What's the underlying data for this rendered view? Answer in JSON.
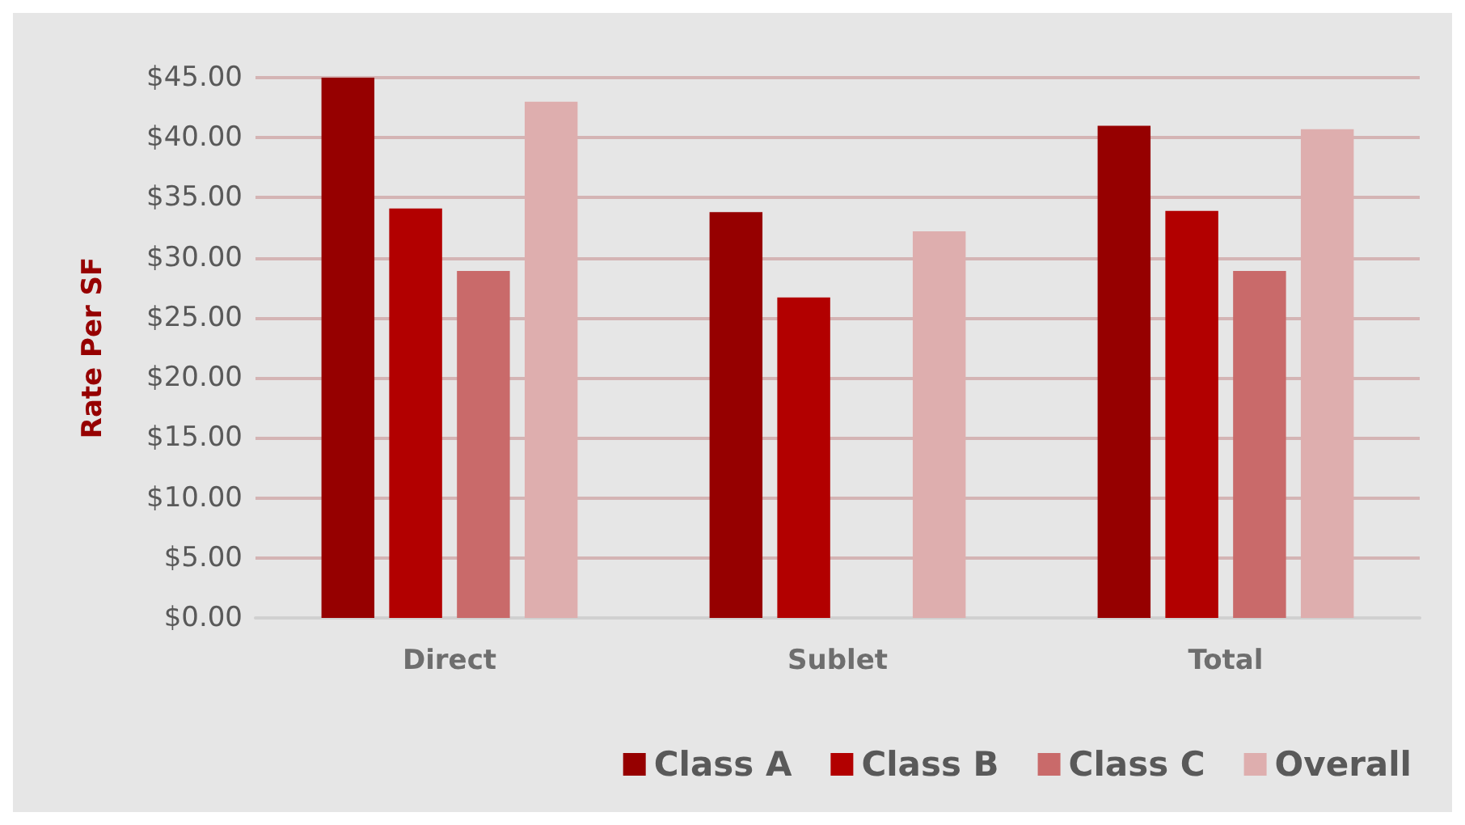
{
  "chart_data": {
    "type": "bar",
    "ylabel": "Rate Per SF",
    "categories": [
      "Direct",
      "Sublet",
      "Total"
    ],
    "series": [
      {
        "name": "Class A",
        "color": "#960000",
        "values": [
          45.0,
          33.8,
          41.0
        ]
      },
      {
        "name": "Class B",
        "color": "#b20000",
        "values": [
          34.1,
          26.7,
          33.9
        ]
      },
      {
        "name": "Class C",
        "color": "#c96a6a",
        "values": [
          28.9,
          null,
          28.9
        ]
      },
      {
        "name": "Overall",
        "color": "#deaeae",
        "values": [
          43.0,
          32.2,
          40.7
        ]
      }
    ],
    "ylim": [
      0,
      45
    ],
    "yticks": [
      {
        "value": 0,
        "label": "$0.00"
      },
      {
        "value": 5,
        "label": "$5.00"
      },
      {
        "value": 10,
        "label": "$10.00"
      },
      {
        "value": 15,
        "label": "$15.00"
      },
      {
        "value": 20,
        "label": "$20.00"
      },
      {
        "value": 25,
        "label": "$25.00"
      },
      {
        "value": 30,
        "label": "$30.00"
      },
      {
        "value": 35,
        "label": "$35.00"
      },
      {
        "value": 40,
        "label": "$40.00"
      },
      {
        "value": 45,
        "label": "$45.00"
      }
    ],
    "grid": "y",
    "legend": "bottom"
  }
}
